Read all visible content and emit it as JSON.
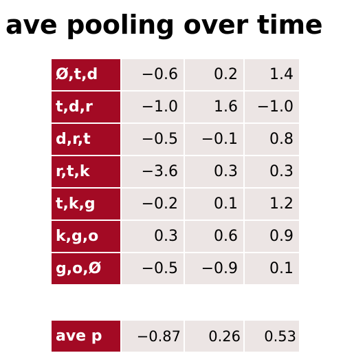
{
  "title": "ave pooling over time",
  "rows": [
    {
      "label": "Ø,t,d",
      "values": [
        "−0.6",
        "0.2",
        "1.4"
      ]
    },
    {
      "label": "t,d,r",
      "values": [
        "−1.0",
        "1.6",
        "−1.0"
      ]
    },
    {
      "label": "d,r,t",
      "values": [
        "−0.5",
        "−0.1",
        "0.8"
      ]
    },
    {
      "label": "r,t,k",
      "values": [
        "−3.6",
        "0.3",
        "0.3"
      ]
    },
    {
      "label": "t,k,g",
      "values": [
        "−0.2",
        "0.1",
        "1.2"
      ]
    },
    {
      "label": "k,g,o",
      "values": [
        "0.3",
        "0.6",
        "0.9"
      ]
    },
    {
      "label": "g,o,Ø",
      "values": [
        "−0.5",
        "−0.9",
        "0.1"
      ]
    }
  ],
  "average": {
    "label": "ave p",
    "values": [
      "−0.87",
      "0.26",
      "0.53"
    ]
  },
  "colors": {
    "label_bg": "#a30a24",
    "cell_bg": "#ece5e4"
  }
}
